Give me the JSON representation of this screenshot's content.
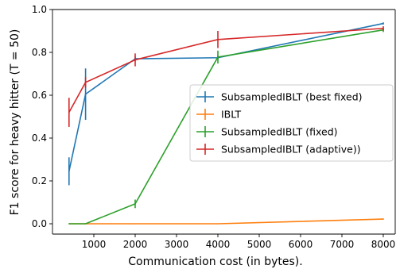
{
  "chart_data": {
    "type": "line",
    "xlabel": "Communication cost (in bytes).",
    "ylabel": "F1 score for heavy hitter (T = 50)",
    "xlim": [
      0,
      8000
    ],
    "ylim": [
      0.0,
      1.0
    ],
    "xticks": [
      1000,
      2000,
      3000,
      4000,
      5000,
      6000,
      7000,
      8000
    ],
    "yticks": [
      0.0,
      0.2,
      0.4,
      0.6,
      0.8,
      1.0
    ],
    "xtick_labels": [
      "1000",
      "2000",
      "3000",
      "4000",
      "5000",
      "6000",
      "7000",
      "8000"
    ],
    "ytick_labels": [
      "0.0",
      "0.2",
      "0.4",
      "0.6",
      "0.8",
      "1.0"
    ],
    "grid": false,
    "legend_position": "center-right",
    "series": [
      {
        "name": "SubsampledIBLT (best fixed)",
        "color": "#1f77b4",
        "x": [
          400,
          800,
          2000,
          4000,
          8000
        ],
        "y": [
          0.245,
          0.605,
          0.77,
          0.775,
          0.935
        ],
        "err": [
          0.065,
          0.12,
          0.01,
          0.01,
          0.005
        ]
      },
      {
        "name": "IBLT",
        "color": "#ff7f0e",
        "x": [
          400,
          800,
          2000,
          4000,
          8000
        ],
        "y": [
          0.0,
          0.0,
          0.0,
          0.0,
          0.022
        ],
        "err": [
          0.002,
          0.002,
          0.002,
          0.002,
          0.003
        ]
      },
      {
        "name": "SubsampledIBLT (fixed)",
        "color": "#2ca02c",
        "x": [
          400,
          800,
          2000,
          4000,
          8000
        ],
        "y": [
          0.0,
          0.0,
          0.093,
          0.778,
          0.905
        ],
        "err": [
          0.002,
          0.002,
          0.02,
          0.03,
          0.01
        ]
      },
      {
        "name": "SubsampledIBLT (adaptive))",
        "color": "#d62728",
        "x": [
          400,
          800,
          2000,
          4000,
          8000
        ],
        "y": [
          0.52,
          0.66,
          0.765,
          0.86,
          0.912
        ],
        "err": [
          0.068,
          0.025,
          0.03,
          0.04,
          0.01
        ]
      }
    ]
  }
}
